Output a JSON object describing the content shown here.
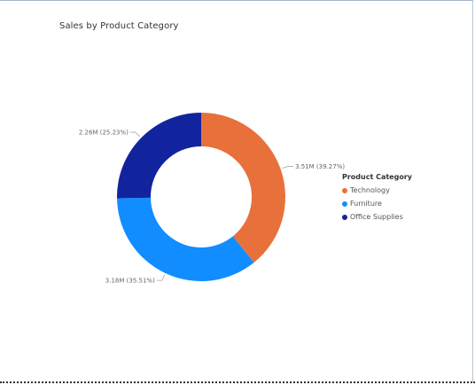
{
  "visual": {
    "title": "Sales by Product Category"
  },
  "chart_data": {
    "type": "pie",
    "variant": "donut",
    "title": "Sales by Product Category",
    "legend_title": "Product Category",
    "legend_position": "right",
    "series": [
      {
        "name": "Technology",
        "value": 3.51,
        "percent": 39.27,
        "label": "3.51M (39.27%)",
        "color": "#E8703A"
      },
      {
        "name": "Furniture",
        "value": 3.18,
        "percent": 35.51,
        "label": "3.18M (35.51%)",
        "color": "#118DFF"
      },
      {
        "name": "Office Supplies",
        "value": 2.26,
        "percent": 25.23,
        "label": "2.26M (25.23%)",
        "color": "#12239E"
      }
    ]
  }
}
